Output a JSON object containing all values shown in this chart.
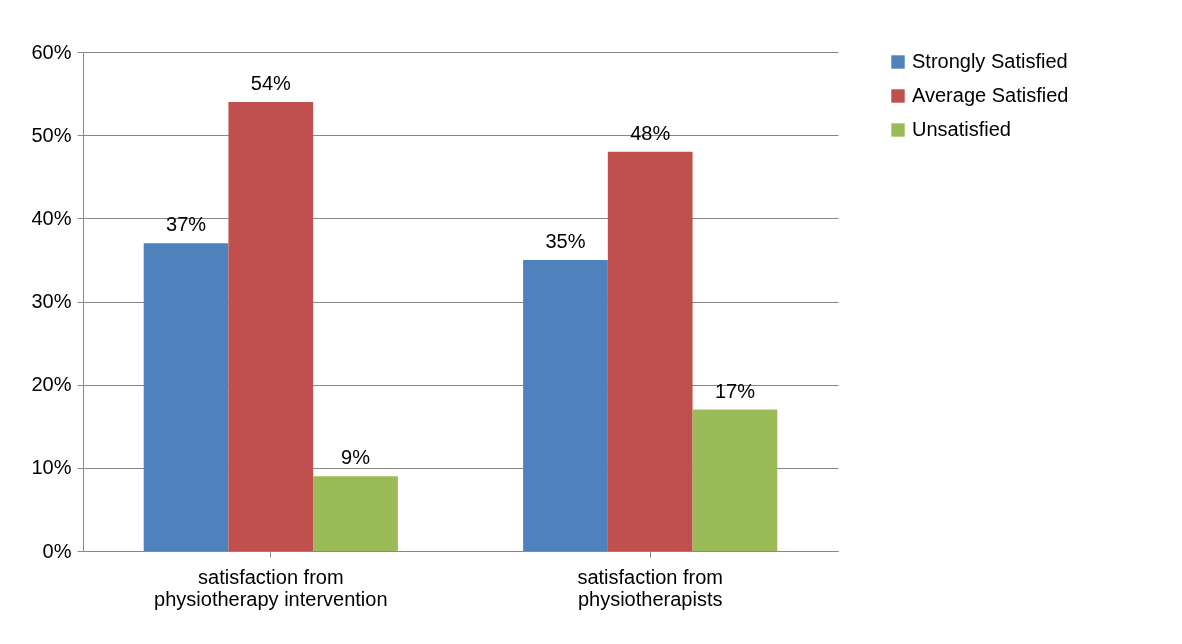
{
  "chart_data": {
    "type": "bar",
    "categories": [
      "satisfaction from physiotherapy intervention",
      "satisfaction from physiotherapists"
    ],
    "series": [
      {
        "name": "Strongly Satisfied",
        "color": "#4f81bd",
        "values": [
          37,
          35
        ],
        "value_labels": [
          "37%",
          "35%"
        ]
      },
      {
        "name": "Average Satisfied",
        "color": "#c0504d",
        "values": [
          54,
          48
        ],
        "value_labels": [
          "54%",
          "48%"
        ]
      },
      {
        "name": "Unsatisfied",
        "color": "#9bbb59",
        "values": [
          9,
          17
        ],
        "value_labels": [
          "9%",
          "17%"
        ]
      }
    ],
    "ylim": [
      0,
      60
    ],
    "yticks": [
      {
        "value": 0,
        "label": "0%"
      },
      {
        "value": 10,
        "label": "10%"
      },
      {
        "value": 20,
        "label": "20%"
      },
      {
        "value": 30,
        "label": "30%"
      },
      {
        "value": 40,
        "label": "40%"
      },
      {
        "value": 50,
        "label": "50%"
      },
      {
        "value": 60,
        "label": "60%"
      }
    ],
    "grid": "y",
    "legend": "top right"
  }
}
